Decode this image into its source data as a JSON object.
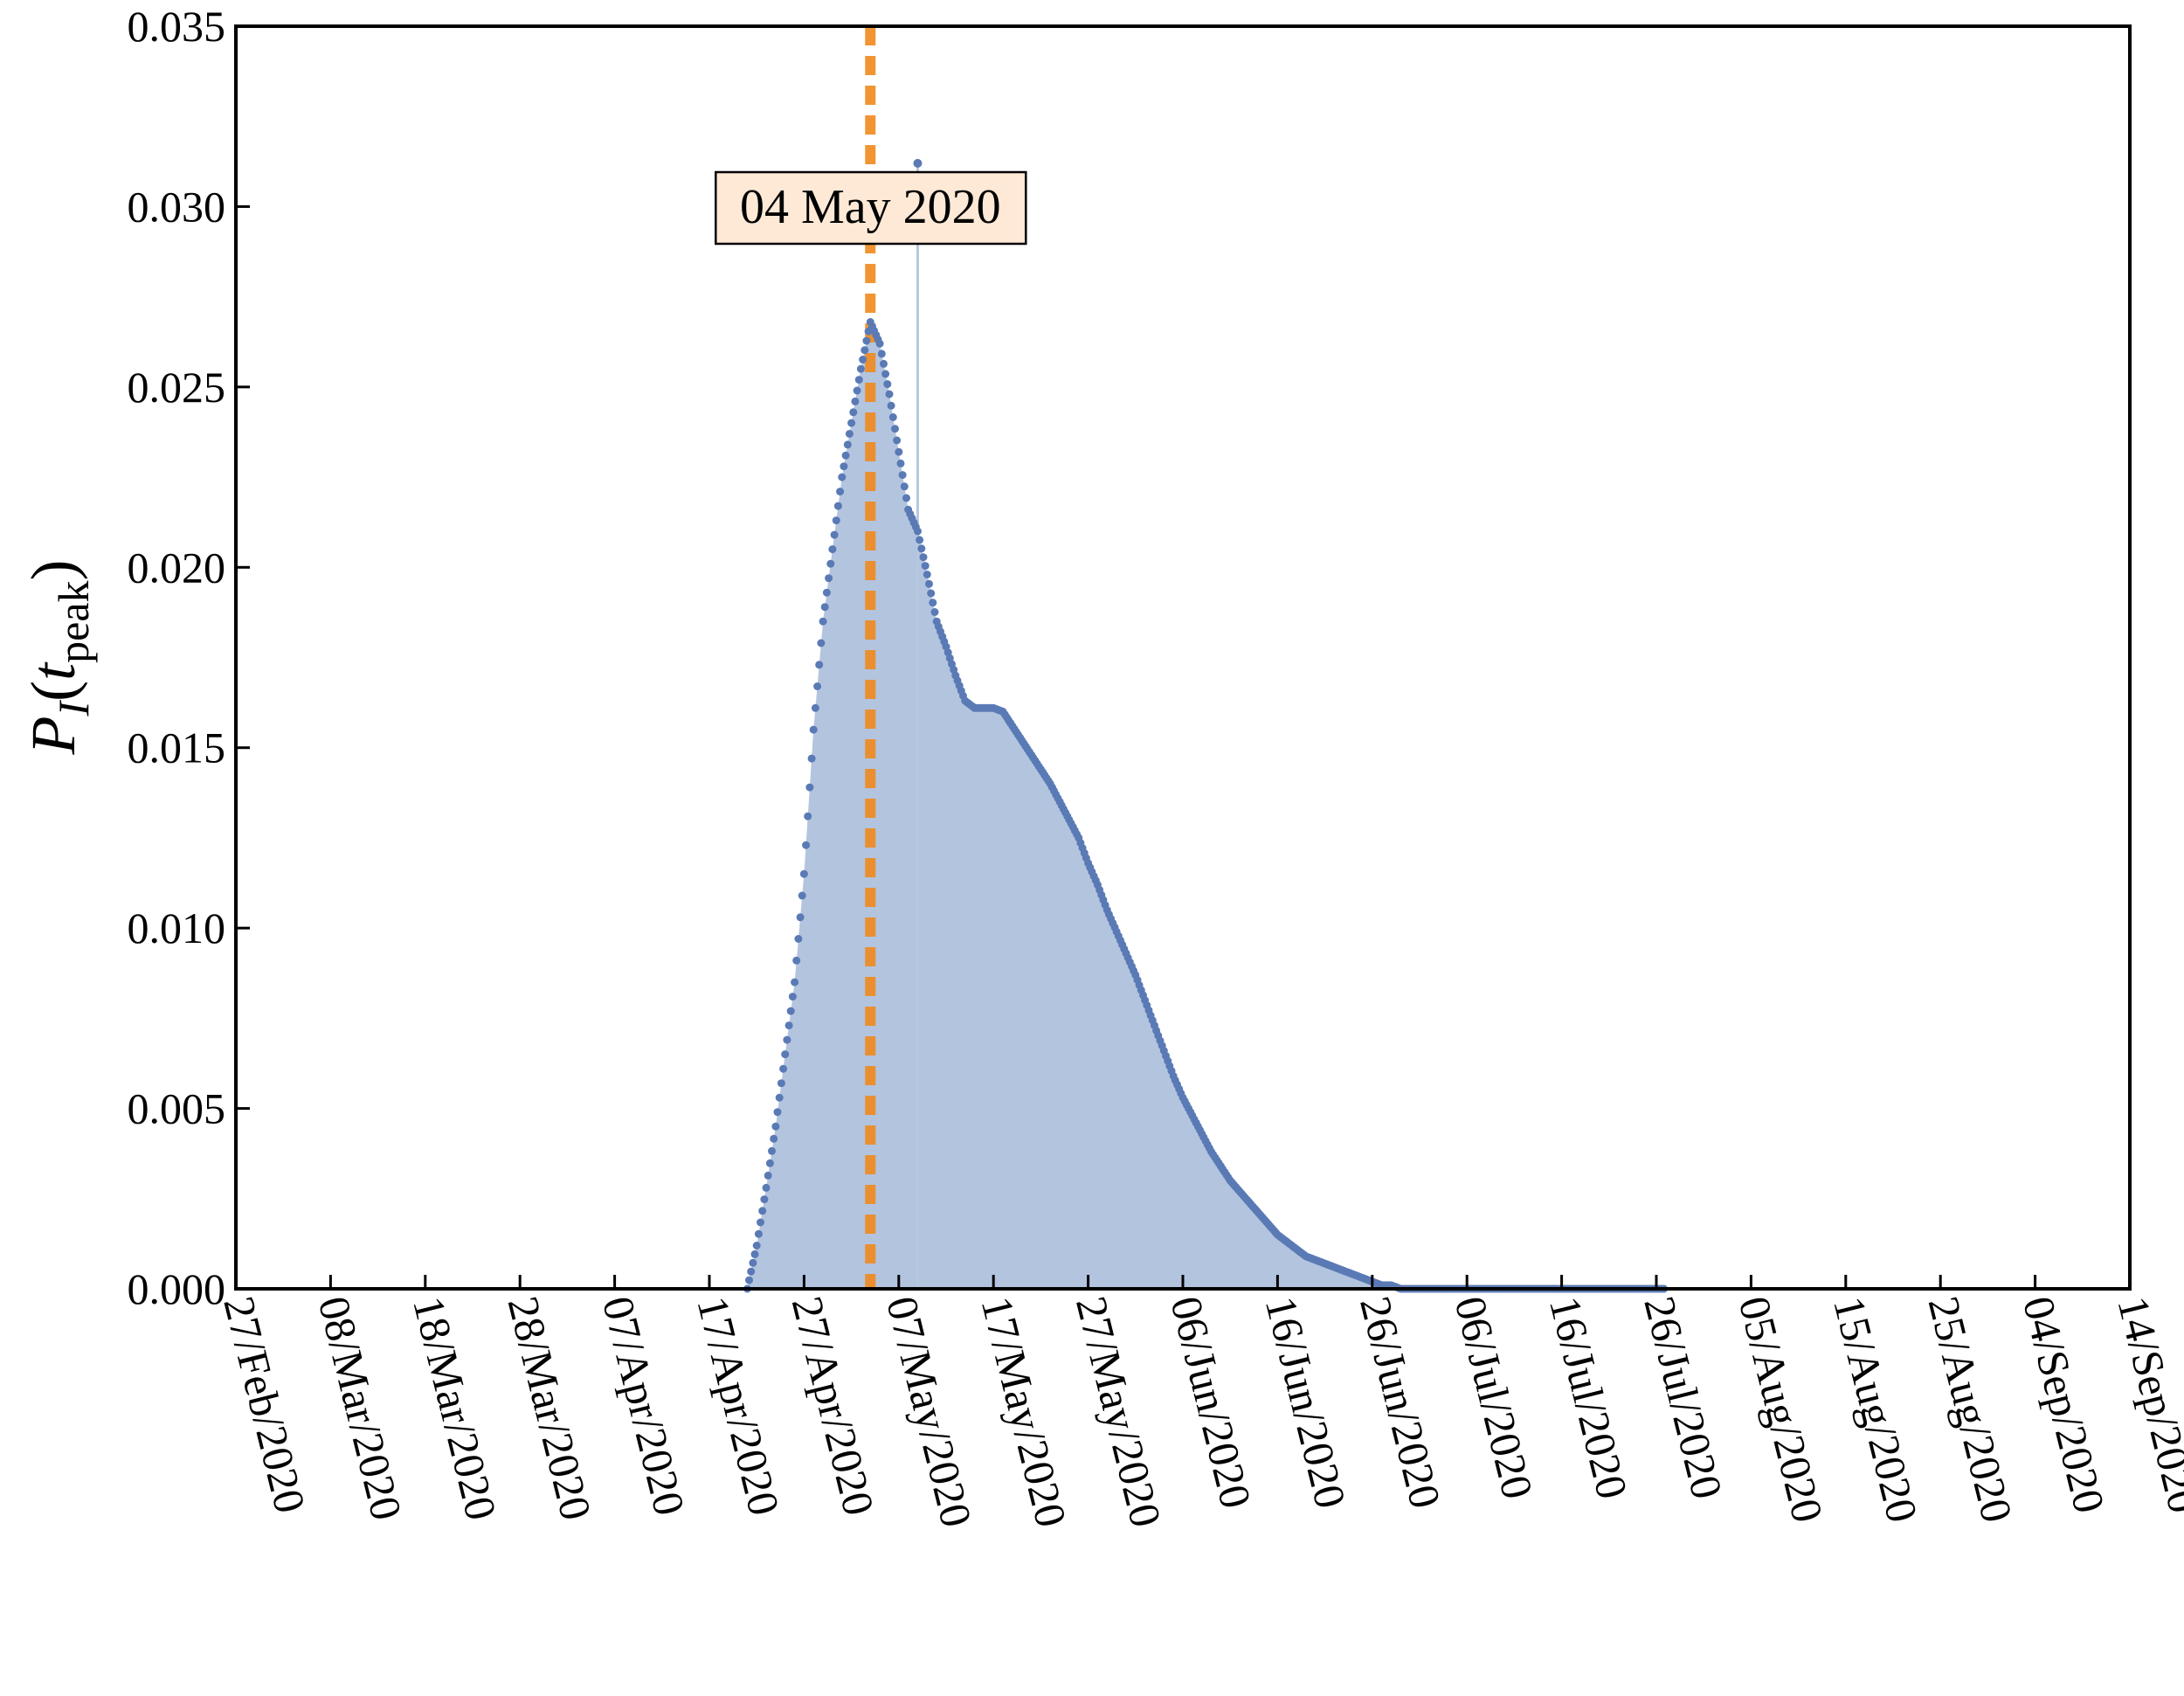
{
  "chart_data": {
    "type": "scatter",
    "ylabel": "P_I(t_peak)",
    "ylabel_main": "P",
    "ylabel_sub": "I",
    "ylabel_open": "(",
    "ylabel_t": "t",
    "ylabel_t_sub": "peak",
    "ylabel_close": ")",
    "ylim": [
      0,
      0.035
    ],
    "yticks": [
      "0.000",
      "0.005",
      "0.010",
      "0.015",
      "0.020",
      "0.025",
      "0.030",
      "0.035"
    ],
    "xlim": [
      "2020-02-27",
      "2020-09-14"
    ],
    "xticks": [
      "27/Feb/2020",
      "08/Mar/2020",
      "18/Mar/2020",
      "28/Mar/2020",
      "07/Apr/2020",
      "17/Apr/2020",
      "27/Apr/2020",
      "07/May/2020",
      "17/May/2020",
      "27/May/2020",
      "06/Jun/2020",
      "16/Jun/2020",
      "26/Jun/2020",
      "06/Jul/2020",
      "16/Jul/2020",
      "26/Jul/2020",
      "05/Aug/2020",
      "15/Aug/2020",
      "25/Aug/2020",
      "04/Sep/2020",
      "14/Sep/2020"
    ],
    "grid": false,
    "colors": {
      "fill": "#afc1dd",
      "points": "#5a7ab5",
      "marker_line": "#ef8a1d",
      "annotation_bg": "#fde9d6"
    },
    "series": [
      {
        "x": [
          "2020-04-21",
          "2020-04-22",
          "2020-04-23",
          "2020-04-24",
          "2020-04-25",
          "2020-04-26",
          "2020-04-27",
          "2020-04-28",
          "2020-04-29",
          "2020-04-30",
          "2020-05-01",
          "2020-05-02",
          "2020-05-03",
          "2020-05-04",
          "2020-05-05",
          "2020-05-06",
          "2020-05-07",
          "2020-05-08",
          "2020-05-09",
          "2020-05-10",
          "2020-05-11",
          "2020-05-12",
          "2020-05-13",
          "2020-05-14",
          "2020-05-15",
          "2020-05-16",
          "2020-05-17",
          "2020-05-18",
          "2020-05-19",
          "2020-05-20",
          "2020-05-21",
          "2020-05-22",
          "2020-05-23",
          "2020-05-24",
          "2020-05-25",
          "2020-05-26",
          "2020-05-27",
          "2020-05-28",
          "2020-05-29",
          "2020-05-30",
          "2020-05-31",
          "2020-06-01",
          "2020-06-02",
          "2020-06-03",
          "2020-06-04",
          "2020-06-05",
          "2020-06-06",
          "2020-06-07",
          "2020-06-08",
          "2020-06-09",
          "2020-06-10",
          "2020-06-11",
          "2020-06-12",
          "2020-06-13",
          "2020-06-14",
          "2020-06-15",
          "2020-06-16",
          "2020-06-17",
          "2020-06-18",
          "2020-06-19",
          "2020-06-20",
          "2020-06-21",
          "2020-06-22",
          "2020-06-23",
          "2020-06-24",
          "2020-06-25",
          "2020-06-26",
          "2020-06-27",
          "2020-06-28",
          "2020-06-29",
          "2020-06-30",
          "2020-07-01",
          "2020-07-02",
          "2020-07-03",
          "2020-07-04",
          "2020-07-05",
          "2020-07-06",
          "2020-07-07",
          "2020-07-08",
          "2020-07-09",
          "2020-07-10",
          "2020-07-11",
          "2020-07-12",
          "2020-07-13",
          "2020-07-14",
          "2020-07-15",
          "2020-07-16",
          "2020-07-17",
          "2020-07-18",
          "2020-07-19",
          "2020-07-20",
          "2020-07-21",
          "2020-07-22",
          "2020-07-23",
          "2020-07-24",
          "2020-07-25",
          "2020-07-26",
          "2020-07-27"
        ],
        "y": [
          0.0,
          0.0012,
          0.0028,
          0.0045,
          0.0065,
          0.0085,
          0.0115,
          0.0155,
          0.0185,
          0.0205,
          0.0225,
          0.024,
          0.0255,
          0.0268,
          0.0262,
          0.0248,
          0.0232,
          0.0216,
          0.021,
          0.0198,
          0.0185,
          0.0178,
          0.017,
          0.0163,
          0.0161,
          0.0161,
          0.0161,
          0.016,
          0.0156,
          0.0152,
          0.0148,
          0.0144,
          0.014,
          0.0135,
          0.013,
          0.0125,
          0.0118,
          0.0112,
          0.0105,
          0.0099,
          0.0093,
          0.0087,
          0.008,
          0.0073,
          0.0066,
          0.0059,
          0.0053,
          0.0048,
          0.0043,
          0.0038,
          0.0034,
          0.003,
          0.0027,
          0.0024,
          0.0021,
          0.0018,
          0.0015,
          0.0013,
          0.0011,
          0.0009,
          0.0008,
          0.0007,
          0.0006,
          0.0005,
          0.0004,
          0.0003,
          0.0002,
          0.0001,
          0.0001,
          0.0,
          0.0,
          0.0,
          0.0,
          0.0,
          0.0,
          0.0,
          0.0,
          0.0,
          0.0,
          0.0,
          0.0,
          0.0,
          0.0,
          0.0,
          0.0,
          0.0,
          0.0,
          0.0,
          0.0,
          0.0,
          0.0,
          0.0,
          0.0,
          0.0,
          0.0,
          0.0,
          0.0,
          0.0
        ]
      }
    ],
    "outliers": [
      {
        "x": "2020-05-09",
        "y": 0.0312
      }
    ],
    "annotation": {
      "text": "04 May 2020",
      "x": "2020-05-04"
    }
  }
}
